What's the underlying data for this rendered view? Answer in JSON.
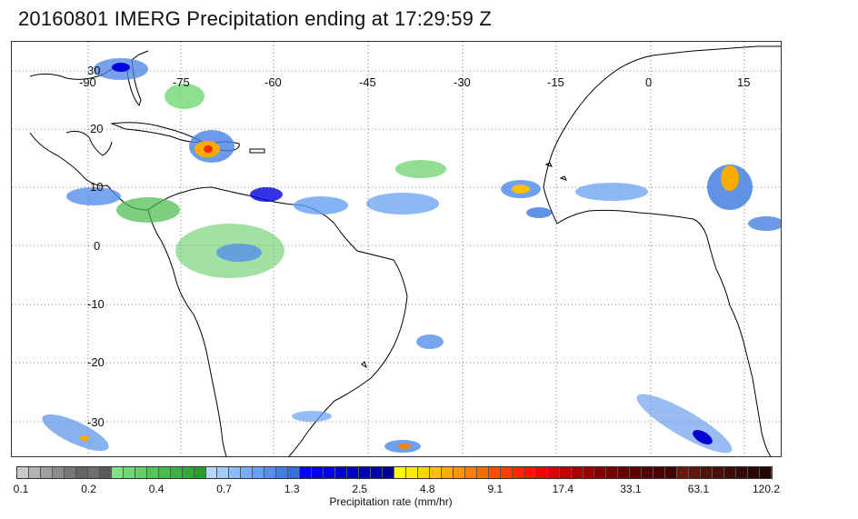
{
  "title": "20160801 IMERG Precipitation ending at 17:29:59 Z",
  "map": {
    "lon_labels": [
      "-90",
      "-75",
      "-60",
      "-45",
      "-30",
      "-15",
      "0",
      "15"
    ],
    "lat_labels": [
      "30",
      "20",
      "10",
      "0",
      "-10",
      "-20",
      "-30"
    ],
    "gridlines": true,
    "gridline_style": "dotted",
    "coastline_color": "#000000"
  },
  "colorbar": {
    "title": "Precipitation rate (mm/hr)",
    "tick_labels": [
      "0.1",
      "0.2",
      "0.4",
      "0.7",
      "1.3",
      "2.5",
      "4.8",
      "9.1",
      "17.4",
      "33.1",
      "63.1",
      "120.2"
    ],
    "colors": [
      "#c8c8c8",
      "#b4b4b4",
      "#a0a0a0",
      "#8c8c8c",
      "#787878",
      "#646464",
      "#6e6e6e",
      "#5a5a5a",
      "#7ee082",
      "#6fd874",
      "#62cf67",
      "#55c55b",
      "#49bb4f",
      "#3eb044",
      "#34a53a",
      "#2a9b31",
      "#b8d8ff",
      "#a2cbff",
      "#8cbcfd",
      "#78aef8",
      "#66a0f2",
      "#5590ea",
      "#4580e0",
      "#3670d6",
      "#0000ff",
      "#0000ee",
      "#0000de",
      "#0000cf",
      "#0000c0",
      "#0000b2",
      "#0000a4",
      "#000096",
      "#ffff00",
      "#ffea00",
      "#ffd400",
      "#ffbf00",
      "#ffaa00",
      "#ff9500",
      "#ff8000",
      "#ff6c00",
      "#ff5200",
      "#ff3d00",
      "#ff2800",
      "#ff1400",
      "#f00000",
      "#d80000",
      "#c00000",
      "#a80000",
      "#900000",
      "#820000",
      "#740000",
      "#660000",
      "#5c0000",
      "#520000",
      "#4a0000",
      "#420000",
      "#6a1a10",
      "#5e160e",
      "#52120c",
      "#460f0a",
      "#3c0c08",
      "#320a06",
      "#2a0804",
      "#220604"
    ]
  }
}
